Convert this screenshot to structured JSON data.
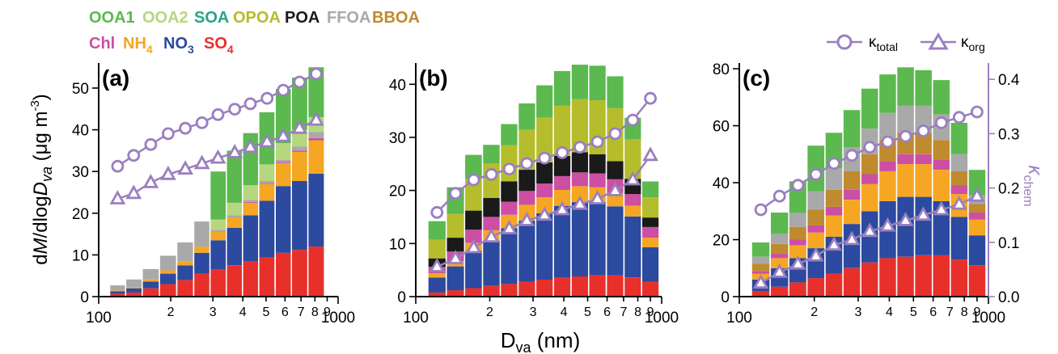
{
  "legend": {
    "row1": [
      {
        "text": "OOA1",
        "color": "#5bb94f"
      },
      {
        "text": "OOA2",
        "color": "#b6d77f"
      },
      {
        "text": "SOA",
        "color": "#27a589"
      },
      {
        "text": "OPOA",
        "color": "#b5bd2c"
      },
      {
        "text": "POA",
        "color": "#1a1a1a"
      },
      {
        "text": "FFOA",
        "color": "#a9a9a9"
      },
      {
        "text": "BBOA",
        "color": "#c08a2e"
      }
    ],
    "row2": [
      {
        "text": "Chl",
        "color": "#cc4fa3"
      },
      {
        "text": "NH",
        "sub": "4",
        "color": "#f5a623"
      },
      {
        "text": "NO",
        "sub": "3",
        "color": "#2b4aa0"
      },
      {
        "text": "SO",
        "sub": "4",
        "color": "#e8302b"
      }
    ],
    "kappa_total": {
      "base": "κ",
      "sub": "total"
    },
    "kappa_org": {
      "base": "κ",
      "sub": "org"
    },
    "kappa_color": "#9a7fc0"
  },
  "axes": {
    "ylabel_left_parts": [
      "d",
      "M",
      "/dlog",
      "D",
      "va",
      " (μg m"
    ],
    "ylabel_left_exp": "-3",
    "ylabel_right": {
      "base": "κ",
      "sub": "chem"
    },
    "xlabel": {
      "base": "D",
      "sub": "va",
      "rest": " (nm)"
    },
    "x_tick_major": [
      "100",
      "1000"
    ],
    "x_tick_minor": [
      "2",
      "3",
      "4",
      "5",
      "6",
      "7",
      "8",
      "9"
    ]
  },
  "chart_data": [
    {
      "panel_label": "(a)",
      "type": "stacked-bar",
      "xscale": "log",
      "xlim": [
        100,
        1000
      ],
      "ylim": [
        0,
        56
      ],
      "yticks": [
        0,
        10,
        20,
        30,
        40,
        50
      ],
      "bins": [
        120,
        140,
        165,
        195,
        230,
        270,
        315,
        370,
        430,
        505,
        590,
        690,
        810
      ],
      "stacks": {
        "SO4": [
          0.7,
          1.0,
          2.0,
          3.0,
          4.0,
          5.5,
          6.5,
          7.5,
          8.5,
          9.5,
          10.5,
          11.2,
          12.0
        ],
        "NO3": [
          0.6,
          1.0,
          1.6,
          2.5,
          3.5,
          5.0,
          7.0,
          9.0,
          11.0,
          13.5,
          16.0,
          16.5,
          17.5
        ],
        "NH4": [
          0.2,
          0.3,
          0.5,
          0.8,
          1.0,
          1.5,
          2.0,
          2.5,
          3.0,
          4.0,
          5.5,
          7.0,
          8.0
        ],
        "Chl": [
          0,
          0,
          0,
          0,
          0,
          0,
          0,
          0,
          0.2,
          0.2,
          0.3,
          0.3,
          0.5
        ],
        "BBOA": [
          0,
          0,
          0,
          0,
          0,
          0,
          0,
          0,
          0,
          0,
          0,
          0,
          0
        ],
        "FFOA": [
          1.2,
          1.8,
          2.5,
          3.5,
          4.5,
          6.0,
          0.5,
          0.5,
          0.5,
          0.5,
          0.5,
          1.0,
          1.5
        ],
        "POA": [
          0,
          0,
          0,
          0,
          0,
          0,
          0,
          0,
          0,
          0,
          0,
          0,
          0
        ],
        "OPOA": [
          0,
          0,
          0,
          0,
          0,
          0,
          0,
          0,
          0,
          0,
          0,
          0,
          0
        ],
        "SOA": [
          0,
          0,
          0,
          0,
          0,
          0,
          0,
          0,
          0,
          0,
          0,
          0,
          0
        ],
        "OOA2": [
          0,
          0,
          0,
          0,
          0,
          0,
          2.5,
          3.0,
          3.5,
          4.0,
          4.0,
          4.0,
          3.5
        ],
        "OOA1": [
          0,
          0,
          0,
          0,
          0,
          0,
          11.5,
          12.5,
          12.5,
          12.5,
          13.0,
          12.5,
          12.0
        ]
      },
      "kappa_total": [
        0.24,
        0.26,
        0.28,
        0.3,
        0.31,
        0.32,
        0.335,
        0.345,
        0.355,
        0.365,
        0.38,
        0.395,
        0.41
      ],
      "kappa_org": [
        0.18,
        0.19,
        0.21,
        0.225,
        0.235,
        0.245,
        0.255,
        0.265,
        0.275,
        0.285,
        0.295,
        0.31,
        0.325
      ]
    },
    {
      "panel_label": "(b)",
      "type": "stacked-bar",
      "xscale": "log",
      "xlim": [
        100,
        1000
      ],
      "ylim": [
        0,
        44
      ],
      "yticks": [
        0,
        10,
        20,
        30,
        40
      ],
      "bins": [
        122,
        145,
        172,
        203,
        240,
        283,
        334,
        394,
        465,
        548,
        647,
        763,
        900
      ],
      "stacks": {
        "SO4": [
          0.8,
          1.2,
          1.6,
          2.0,
          2.4,
          2.8,
          3.2,
          3.6,
          3.8,
          4.0,
          4.0,
          3.6,
          2.8
        ],
        "NO3": [
          2.8,
          4.5,
          7.0,
          8.5,
          10.5,
          11.5,
          12.5,
          13.5,
          14.0,
          13.8,
          13.0,
          11.5,
          6.5
        ],
        "NH4": [
          0.8,
          1.0,
          1.5,
          2.0,
          2.5,
          3.0,
          3.0,
          3.0,
          3.0,
          2.8,
          2.5,
          2.0,
          1.8
        ],
        "Chl": [
          1.2,
          1.8,
          2.5,
          2.5,
          2.5,
          2.6,
          2.6,
          2.6,
          2.6,
          2.6,
          2.6,
          2.2,
          2.0
        ],
        "BBOA": [
          0,
          0,
          0,
          0,
          0,
          0,
          0,
          0,
          0,
          0,
          0,
          0,
          0
        ],
        "FFOA": [
          0,
          0,
          0,
          0,
          0,
          0,
          0,
          0,
          0,
          0,
          0,
          0,
          0
        ],
        "POA": [
          1.6,
          2.6,
          3.6,
          3.6,
          3.8,
          4.0,
          4.0,
          3.8,
          3.8,
          3.6,
          3.4,
          2.9,
          1.8
        ],
        "OPOA": [
          3.5,
          4.5,
          6.0,
          6.5,
          6.8,
          7.5,
          8.5,
          9.5,
          10.0,
          10.2,
          10.0,
          7.5,
          3.8
        ],
        "SOA": [
          0,
          0,
          0,
          0,
          0,
          0,
          0,
          0,
          0,
          0,
          0,
          0,
          0
        ],
        "OOA2": [
          0,
          0,
          0,
          0,
          0,
          0,
          0,
          0,
          0,
          0,
          0,
          0,
          0
        ],
        "OOA1": [
          3.5,
          5.0,
          4.5,
          3.5,
          4.0,
          5.0,
          6.0,
          6.5,
          6.5,
          6.5,
          6.0,
          4.0,
          3.0
        ]
      },
      "kappa_total": [
        0.155,
        0.19,
        0.215,
        0.225,
        0.235,
        0.245,
        0.255,
        0.265,
        0.275,
        0.285,
        0.3,
        0.325,
        0.365
      ],
      "kappa_org": [
        0.055,
        0.07,
        0.09,
        0.11,
        0.125,
        0.14,
        0.15,
        0.16,
        0.17,
        0.18,
        0.195,
        0.215,
        0.26
      ]
    },
    {
      "panel_label": "(c)",
      "type": "stacked-bar",
      "xscale": "log",
      "xlim": [
        100,
        1000
      ],
      "ylim": [
        0,
        82
      ],
      "yticks": [
        0,
        20,
        40,
        60,
        80
      ],
      "ylim_right": [
        0,
        0.43
      ],
      "yticks_right": [
        0.0,
        0.1,
        0.2,
        0.3,
        0.4
      ],
      "bins": [
        122,
        145,
        172,
        203,
        240,
        283,
        334,
        394,
        465,
        548,
        647,
        763,
        900
      ],
      "stacks": {
        "SO4": [
          2.0,
          3.5,
          5.0,
          6.5,
          8.0,
          10.0,
          12.0,
          13.5,
          14.0,
          14.5,
          14.5,
          13.0,
          11.0
        ],
        "NO3": [
          4.0,
          6.5,
          8.5,
          10.5,
          13.0,
          15.5,
          18.0,
          20.0,
          21.0,
          20.5,
          19.0,
          15.0,
          10.5
        ],
        "NH4": [
          2.0,
          3.5,
          4.5,
          5.5,
          7.5,
          8.5,
          9.5,
          10.5,
          11.5,
          11.5,
          11.0,
          8.0,
          5.5
        ],
        "Chl": [
          1.0,
          1.5,
          2.0,
          2.5,
          3.0,
          3.5,
          3.5,
          3.5,
          3.5,
          3.5,
          3.5,
          3.0,
          2.5
        ],
        "BBOA": [
          2.5,
          3.5,
          4.5,
          5.5,
          6.0,
          6.5,
          7.0,
          7.5,
          7.5,
          7.5,
          7.0,
          5.0,
          3.0
        ],
        "FFOA": [
          2.5,
          3.5,
          5.0,
          6.5,
          7.5,
          8.5,
          9.0,
          9.5,
          9.5,
          9.5,
          9.0,
          6.0,
          3.0
        ],
        "POA": [
          0,
          0,
          0,
          0,
          0,
          0,
          0,
          0,
          0,
          0,
          0,
          0,
          0
        ],
        "OPOA": [
          0,
          0,
          0,
          0,
          0,
          0,
          0,
          0,
          0,
          0,
          0,
          0,
          0
        ],
        "SOA": [
          0,
          0,
          0,
          0,
          0,
          0,
          0,
          0,
          0,
          0,
          0,
          0,
          0
        ],
        "OOA2": [
          0,
          0,
          0,
          0,
          0,
          0,
          0,
          0,
          0,
          0,
          0,
          0,
          0
        ],
        "OOA1": [
          5.0,
          7.5,
          11.0,
          16.0,
          12.5,
          13.0,
          14.0,
          13.5,
          13.5,
          12.5,
          12.0,
          11.0,
          9.0
        ]
      },
      "kappa_total": [
        0.16,
        0.185,
        0.205,
        0.225,
        0.245,
        0.26,
        0.275,
        0.285,
        0.295,
        0.305,
        0.32,
        0.33,
        0.34
      ],
      "kappa_org": [
        0.025,
        0.045,
        0.06,
        0.075,
        0.095,
        0.105,
        0.12,
        0.13,
        0.14,
        0.15,
        0.16,
        0.17,
        0.185
      ]
    }
  ]
}
